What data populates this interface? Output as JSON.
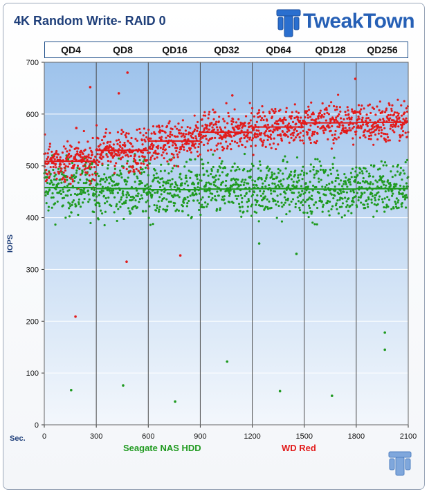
{
  "page": {
    "title": "4K Random Write- RAID 0",
    "brand": "TweakTown",
    "x_unit_label": "Sec."
  },
  "queue_depths": [
    "QD4",
    "QD8",
    "QD16",
    "QD32",
    "QD64",
    "QD128",
    "QD256"
  ],
  "colors": {
    "seagate": "#1f9a1f",
    "wdred": "#e21b1b",
    "plot_top": "#9ec3ec",
    "plot_bottom": "#f3f7fc",
    "title": "#1f3f7a"
  },
  "chart_data": {
    "type": "scatter",
    "title": "4K Random Write- RAID 0",
    "xlabel": "",
    "ylabel": "IOPS",
    "xlim": [
      0,
      2100
    ],
    "ylim": [
      0,
      700
    ],
    "x_ticks": [
      0,
      300,
      600,
      900,
      1200,
      1500,
      1800,
      2100
    ],
    "y_ticks": [
      0,
      100,
      200,
      300,
      400,
      500,
      600,
      700
    ],
    "grid": true,
    "legend": "bottom",
    "series": [
      {
        "name": "Seagate NAS HDD",
        "color": "#1f9a1f",
        "segment_means": [
          {
            "x_start": 0,
            "x_end": 300,
            "mean": 458
          },
          {
            "x_start": 300,
            "x_end": 600,
            "mean": 456
          },
          {
            "x_start": 600,
            "x_end": 900,
            "mean": 454
          },
          {
            "x_start": 900,
            "x_end": 1200,
            "mean": 455
          },
          {
            "x_start": 1200,
            "x_end": 1500,
            "mean": 456
          },
          {
            "x_start": 1500,
            "x_end": 1800,
            "mean": 455
          },
          {
            "x_start": 1800,
            "x_end": 2100,
            "mean": 456
          }
        ],
        "spread": 30,
        "outliers": [
          {
            "x": 155,
            "y": 67
          },
          {
            "x": 455,
            "y": 76
          },
          {
            "x": 755,
            "y": 45
          },
          {
            "x": 1055,
            "y": 122
          },
          {
            "x": 1360,
            "y": 65
          },
          {
            "x": 1660,
            "y": 56
          },
          {
            "x": 1965,
            "y": 178
          },
          {
            "x": 1965,
            "y": 145
          },
          {
            "x": 1455,
            "y": 330
          },
          {
            "x": 1240,
            "y": 350
          }
        ]
      },
      {
        "name": "WD Red",
        "color": "#e21b1b",
        "segment_means": [
          {
            "x_start": 0,
            "x_end": 300,
            "mean": 509
          },
          {
            "x_start": 300,
            "x_end": 600,
            "mean": 530
          },
          {
            "x_start": 600,
            "x_end": 900,
            "mean": 548
          },
          {
            "x_start": 900,
            "x_end": 1200,
            "mean": 565
          },
          {
            "x_start": 1200,
            "x_end": 1500,
            "mean": 575
          },
          {
            "x_start": 1500,
            "x_end": 1800,
            "mean": 583
          },
          {
            "x_start": 1800,
            "x_end": 2100,
            "mean": 584
          }
        ],
        "spread": 22,
        "outliers": [
          {
            "x": 180,
            "y": 209
          },
          {
            "x": 475,
            "y": 315
          },
          {
            "x": 785,
            "y": 327
          },
          {
            "x": 480,
            "y": 680
          },
          {
            "x": 265,
            "y": 652
          },
          {
            "x": 1795,
            "y": 668
          },
          {
            "x": 1085,
            "y": 636
          },
          {
            "x": 185,
            "y": 573
          },
          {
            "x": 430,
            "y": 640
          }
        ]
      }
    ]
  }
}
